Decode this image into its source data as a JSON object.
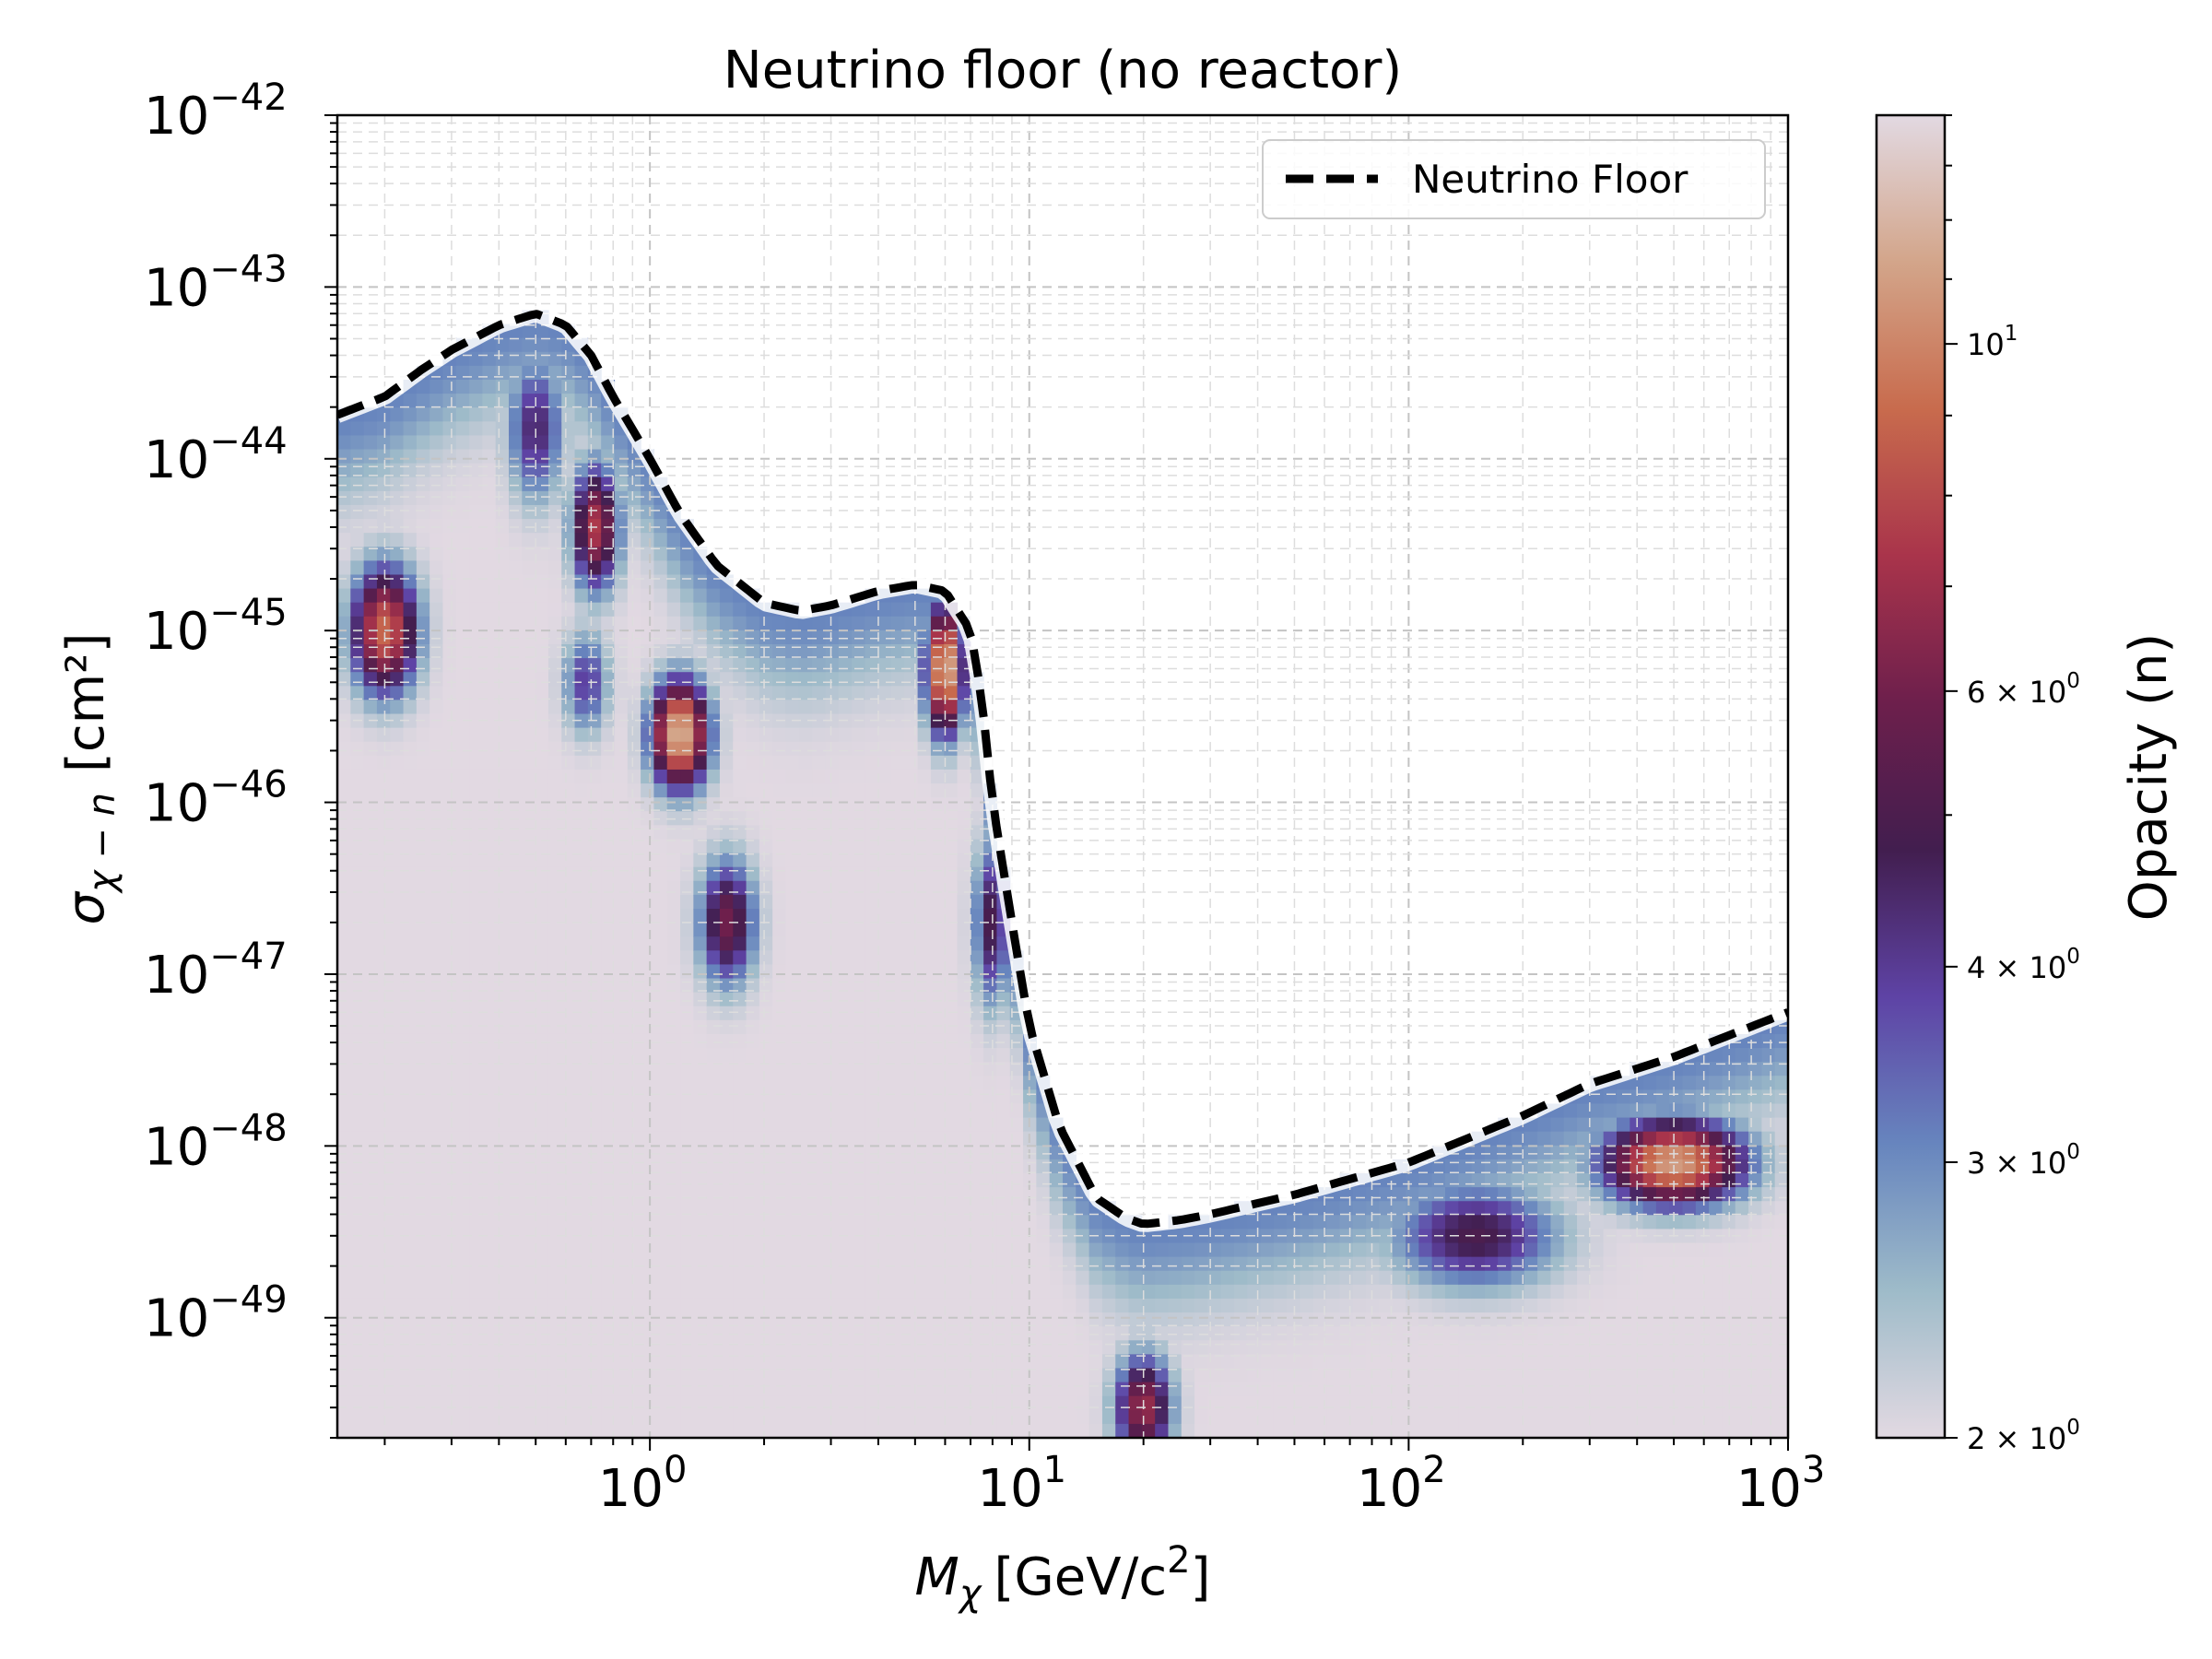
{
  "chart_data": {
    "type": "heatmap",
    "title": "Neutrino floor (no reactor)",
    "xlabel": {
      "main": "M",
      "sub": "χ",
      "unit": "[GeV/c",
      "power": "2",
      "close": "]"
    },
    "ylabel": {
      "main": "σ",
      "sub": "χ − n",
      "unit": "[cm²]"
    },
    "x_scale": "log",
    "y_scale": "log",
    "xlim": [
      0.15,
      1000
    ],
    "ylim": [
      2e-50,
      1e-42
    ],
    "grid": true,
    "x_ticks": [
      {
        "value": 1,
        "base": "10",
        "exp": "0"
      },
      {
        "value": 10,
        "base": "10",
        "exp": "1"
      },
      {
        "value": 100,
        "base": "10",
        "exp": "2"
      },
      {
        "value": 1000,
        "base": "10",
        "exp": "3"
      }
    ],
    "y_ticks": [
      {
        "value": 1e-42,
        "base": "10",
        "exp": "−42"
      },
      {
        "value": 1e-43,
        "base": "10",
        "exp": "−43"
      },
      {
        "value": 1e-44,
        "base": "10",
        "exp": "−44"
      },
      {
        "value": 1e-45,
        "base": "10",
        "exp": "−45"
      },
      {
        "value": 1e-46,
        "base": "10",
        "exp": "−46"
      },
      {
        "value": 1e-47,
        "base": "10",
        "exp": "−47"
      },
      {
        "value": 1e-48,
        "base": "10",
        "exp": "−48"
      },
      {
        "value": 1e-49,
        "base": "10",
        "exp": "−49"
      }
    ],
    "legend": {
      "position": "top-right",
      "entries": [
        {
          "label": "Neutrino Floor",
          "style": "dashed",
          "color": "#000000"
        }
      ]
    },
    "series": [
      {
        "name": "Neutrino Floor",
        "x": [
          0.15,
          0.2,
          0.25,
          0.3,
          0.4,
          0.5,
          0.6,
          0.7,
          0.8,
          1.0,
          1.2,
          1.5,
          2.0,
          2.5,
          3.0,
          4.0,
          5.0,
          6.0,
          7.0,
          7.5,
          8.0,
          9.0,
          10,
          12,
          15,
          18,
          20,
          25,
          30,
          50,
          100,
          200,
          300,
          500,
          1000
        ],
        "y": [
          1.8e-44,
          2.3e-44,
          3.3e-44,
          4.3e-44,
          6e-44,
          7e-44,
          6e-44,
          4e-44,
          2.3e-44,
          1e-44,
          4.8e-45,
          2.4e-45,
          1.45e-45,
          1.3e-45,
          1.4e-45,
          1.7e-45,
          1.85e-45,
          1.7e-45,
          1e-45,
          4e-46,
          1e-46,
          2e-47,
          5e-48,
          1.3e-48,
          5e-49,
          3.8e-49,
          3.5e-49,
          3.7e-49,
          4e-49,
          5.2e-49,
          8e-49,
          1.5e-48,
          2.3e-48,
          3.3e-48,
          6e-48
        ]
      }
    ],
    "colorbar": {
      "label": "Opacity (n)",
      "scale": "log",
      "range": [
        2,
        14
      ],
      "ticks": [
        {
          "value": 2,
          "coef": "2",
          "exp": "0"
        },
        {
          "value": 3,
          "coef": "3",
          "exp": "0"
        },
        {
          "value": 4,
          "coef": "4",
          "exp": "0"
        },
        {
          "value": 6,
          "coef": "6",
          "exp": "0"
        },
        {
          "value": 10,
          "coef": "",
          "exp": "1"
        }
      ],
      "colormap": [
        "#e2d9e2",
        "#9ebbc9",
        "#6785be",
        "#5e43a5",
        "#421e4f",
        "#6d1f4c",
        "#a9344b",
        "#c86b4d",
        "#d3a58a",
        "#e2d9e2"
      ]
    },
    "hotspots": [
      {
        "x": 0.2,
        "y": 1e-45,
        "sx": 0.07,
        "sy": 0.3,
        "value": 9
      },
      {
        "x": 0.5,
        "y": 1.5e-44,
        "sx": 0.06,
        "sy": 0.35,
        "value": 4.5
      },
      {
        "x": 0.72,
        "y": 4e-45,
        "sx": 0.05,
        "sy": 0.3,
        "value": 7.5
      },
      {
        "x": 0.68,
        "y": 5e-46,
        "sx": 0.05,
        "sy": 0.25,
        "value": 4
      },
      {
        "x": 1.2,
        "y": 2.5e-46,
        "sx": 0.06,
        "sy": 0.25,
        "value": 12
      },
      {
        "x": 1.6,
        "y": 2e-47,
        "sx": 0.06,
        "sy": 0.3,
        "value": 6
      },
      {
        "x": 6.0,
        "y": 6e-46,
        "sx": 0.04,
        "sy": 0.3,
        "value": 12
      },
      {
        "x": 8.0,
        "y": 2e-47,
        "sx": 0.04,
        "sy": 0.4,
        "value": 5
      },
      {
        "x": 20,
        "y": 3e-50,
        "sx": 0.06,
        "sy": 0.25,
        "value": 7
      },
      {
        "x": 150,
        "y": 3e-49,
        "sx": 0.18,
        "sy": 0.25,
        "value": 5
      },
      {
        "x": 500,
        "y": 8e-49,
        "sx": 0.15,
        "sy": 0.2,
        "value": 11
      }
    ]
  }
}
